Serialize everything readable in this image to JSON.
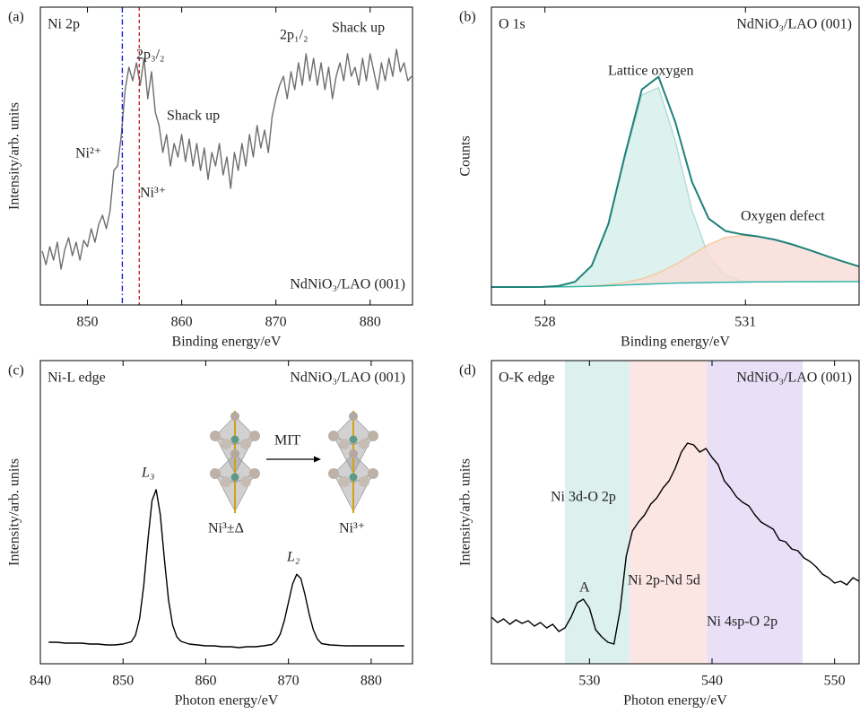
{
  "chart_data": [
    {
      "type": "line",
      "panel": "(a)",
      "label": "Ni 2p",
      "sample": "NdNiO₃/LAO (001)",
      "xlabel": "Binding energy/eV",
      "ylabel": "Intensity/arb. units",
      "xlim": [
        845,
        884.5
      ],
      "ylim": [
        0,
        332
      ],
      "xticks": [
        850,
        860,
        870,
        880
      ],
      "x": [
        845.2,
        845.6,
        846,
        846.4,
        846.8,
        847.2,
        847.6,
        848,
        848.4,
        848.8,
        849.2,
        849.6,
        850,
        850.4,
        850.8,
        851.2,
        851.6,
        852,
        852.4,
        852.8,
        853.2,
        853.6,
        854,
        854.4,
        854.8,
        855.2,
        855.6,
        856,
        856.4,
        856.8,
        857.2,
        857.6,
        858,
        858.4,
        858.8,
        859.2,
        859.6,
        860,
        860.4,
        860.8,
        861.2,
        861.6,
        862,
        862.4,
        862.8,
        863.2,
        863.6,
        864,
        864.4,
        864.8,
        865.2,
        865.6,
        866,
        866.4,
        866.8,
        867.2,
        867.6,
        868,
        868.4,
        868.8,
        869.2,
        869.6,
        870,
        870.4,
        870.8,
        871.2,
        871.6,
        872,
        872.4,
        872.8,
        873.2,
        873.6,
        874,
        874.4,
        874.8,
        875.2,
        875.6,
        876,
        876.4,
        876.8,
        877.2,
        877.6,
        878,
        878.4,
        878.8,
        879.2,
        879.6,
        880,
        880.4,
        880.8,
        881.2,
        881.6,
        882,
        882.4,
        882.8,
        883.2,
        883.6,
        884,
        884.4
      ],
      "series": [
        {
          "color": "#6e6e6e",
          "values": [
            60,
            45,
            65,
            50,
            70,
            40,
            62,
            75,
            55,
            70,
            50,
            72,
            65,
            85,
            70,
            90,
            100,
            85,
            105,
            150,
            155,
            190,
            240,
            265,
            250,
            270,
            245,
            275,
            230,
            260,
            215,
            200,
            170,
            190,
            155,
            180,
            165,
            190,
            160,
            185,
            155,
            180,
            150,
            175,
            140,
            170,
            155,
            180,
            145,
            165,
            130,
            170,
            150,
            180,
            155,
            190,
            165,
            200,
            175,
            195,
            170,
            210,
            230,
            245,
            255,
            230,
            260,
            240,
            270,
            245,
            280,
            250,
            275,
            245,
            270,
            240,
            265,
            230,
            255,
            270,
            250,
            280,
            255,
            265,
            245,
            275,
            250,
            280,
            260,
            240,
            270,
            250,
            275,
            255,
            285,
            260,
            270,
            250,
            255
          ]
        }
      ],
      "vlines": [
        {
          "value": 853.7,
          "color": "#1a1adb",
          "style": "dash-dot"
        },
        {
          "value": 855.5,
          "color": "#c0282d",
          "style": "dashed"
        }
      ],
      "annotations": [
        {
          "text": "2p₃/₂",
          "color": "#222222"
        },
        {
          "text": "Shack up",
          "color": "#222222"
        },
        {
          "text": "2p₁/₂",
          "color": "#222222"
        },
        {
          "text": "Shack up",
          "color": "#222222"
        },
        {
          "text": "Ni²⁺",
          "color": "#1a1adb"
        },
        {
          "text": "Ni³⁺",
          "color": "#c0282d"
        }
      ]
    },
    {
      "type": "line",
      "panel": "(b)",
      "label": "O 1s",
      "sample": "NdNiO₃/LAO (001)",
      "xlabel": "Binding energy/eV",
      "ylabel": "Counts",
      "xlim": [
        527.2,
        532.7
      ],
      "ylim": [
        0,
        332
      ],
      "xticks": [
        528,
        531
      ],
      "x": [
        527.2,
        527.45,
        527.7,
        527.95,
        528.2,
        528.45,
        528.7,
        528.95,
        529.2,
        529.45,
        529.7,
        529.95,
        530.2,
        530.45,
        530.7,
        530.95,
        531.2,
        531.45,
        531.7,
        531.95,
        532.2,
        532.45,
        532.7
      ],
      "series": [
        {
          "color": "#2bb5a8",
          "values": [
            20,
            20,
            20,
            20,
            20.2,
            20.4,
            20.8,
            21.5,
            22.3,
            23,
            23.7,
            24.3,
            24.7,
            25,
            25.3,
            25.5,
            25.7,
            25.8,
            25.9,
            26,
            26,
            26.1,
            26.1
          ]
        },
        {
          "color": "#a9dcd3",
          "fill": "#d4eeea",
          "values": [
            0,
            0,
            0,
            0.1,
            0.9,
            5.3,
            22.6,
            67.9,
            143,
            211.1,
            218.7,
            159,
            81.1,
            29,
            7.3,
            1.3,
            0.2,
            0,
            0,
            0,
            0,
            0,
            0
          ]
        },
        {
          "color": "#f1c79a",
          "fill": "#f9dcd6",
          "values": [
            0,
            0,
            0,
            0,
            0,
            0.1,
            0.4,
            1.1,
            2.7,
            6.1,
            12,
            20.7,
            31.5,
            42.3,
            49.9,
            51.9,
            50.3,
            46.8,
            41.6,
            35.4,
            28.9,
            22.6,
            16.9
          ]
        },
        {
          "color": "#1d8278",
          "values": [
            20,
            20,
            20,
            20.1,
            21.1,
            25.8,
            43.8,
            90.5,
            168,
            240.2,
            254.4,
            204,
            137.3,
            96.3,
            82.5,
            78.7,
            76.2,
            72.6,
            67.5,
            61.4,
            54.9,
            48.7,
            43
          ]
        }
      ],
      "annotations": [
        {
          "text": "Lattice oxygen",
          "color": "#222222"
        },
        {
          "text": "Oxygen defect",
          "color": "#222222"
        }
      ]
    },
    {
      "type": "line",
      "panel": "(c)",
      "label": "Ni-L edge",
      "sample": "NdNiO₃/LAO (001)",
      "xlabel": "Photon energy/eV",
      "ylabel": "Intensity/arb. units",
      "xlim": [
        840,
        885
      ],
      "ylim": [
        0,
        338
      ],
      "xticks": [
        840,
        850,
        860,
        870,
        880
      ],
      "x": [
        841,
        842,
        843,
        844,
        845,
        846,
        847,
        848,
        849,
        850,
        851,
        851.5,
        852,
        852.5,
        853,
        853.5,
        854,
        854.5,
        855,
        855.5,
        856,
        856.5,
        857,
        858,
        859,
        860,
        861,
        862,
        863,
        864,
        865,
        866,
        867,
        868,
        868.5,
        869,
        869.5,
        870,
        870.5,
        871,
        871.5,
        872,
        872.5,
        873,
        873.5,
        874,
        875,
        876,
        877,
        878,
        879,
        880,
        881,
        882,
        883,
        884
      ],
      "series": [
        {
          "color": "#000000",
          "values": [
            24,
            24,
            23,
            23,
            23,
            22,
            22,
            21,
            21,
            22,
            24.6,
            31.7,
            50.5,
            87,
            137.4,
            181.7,
            194.1,
            166.5,
            116.5,
            71,
            43,
            30,
            25,
            22,
            21,
            20,
            20,
            19,
            19,
            18,
            19,
            19,
            20,
            21.5,
            25,
            33,
            48,
            68.5,
            89,
            99.7,
            95,
            77,
            55.6,
            38,
            27.5,
            22.5,
            21,
            20.5,
            20,
            20,
            20,
            20,
            20,
            20,
            20,
            20
          ]
        }
      ],
      "annotations": [
        {
          "text": "L₃",
          "color": "#000000"
        },
        {
          "text": "L₂",
          "color": "#000000"
        },
        {
          "text": "MIT",
          "color": "#000000"
        },
        {
          "text": "Ni³±Δ",
          "color": "#222222"
        },
        {
          "text": "Ni³⁺",
          "color": "#222222"
        }
      ]
    },
    {
      "type": "line",
      "panel": "(d)",
      "label": "O-K edge",
      "sample": "NdNiO₃/LAO (001)",
      "xlabel": "Photon energy/eV",
      "ylabel": "Intensity/arb. units",
      "xlim": [
        522,
        552
      ],
      "ylim": [
        0,
        338
      ],
      "xticks": [
        530,
        540,
        550
      ],
      "x": [
        522,
        522.5,
        523,
        523.5,
        524,
        524.5,
        525,
        525.5,
        526,
        526.5,
        527,
        527.5,
        528,
        528.5,
        529,
        529.5,
        530,
        530.5,
        531,
        531.5,
        532,
        532.5,
        533,
        533.5,
        534,
        534.5,
        535,
        535.5,
        536,
        536.5,
        537,
        537.5,
        538,
        538.5,
        539,
        539.5,
        540,
        540.5,
        541,
        541.5,
        542,
        542.5,
        543,
        543.5,
        544,
        544.5,
        545,
        545.5,
        546,
        546.5,
        547,
        547.5,
        548,
        548.5,
        549,
        549.5,
        550,
        550.5,
        551,
        551.5,
        552
      ],
      "series": [
        {
          "color": "#000000",
          "values": [
            52,
            46,
            50,
            44,
            49,
            45,
            48,
            42,
            46,
            40,
            44,
            36,
            40,
            52,
            68,
            72,
            62,
            38,
            30,
            24,
            22,
            60,
            120,
            148,
            158,
            166,
            178,
            185,
            196,
            204,
            218,
            236,
            246,
            244,
            236,
            240,
            230,
            222,
            204,
            196,
            186,
            180,
            176,
            166,
            158,
            154,
            150,
            138,
            136,
            128,
            126,
            118,
            114,
            108,
            100,
            96,
            90,
            92,
            88,
            96,
            92
          ]
        }
      ],
      "bands": [
        {
          "start": 528,
          "end": 533.3,
          "color": "#dcf0ee",
          "label": "Ni 3d-O 2p",
          "label_color": "#3a9a98"
        },
        {
          "start": 533.3,
          "end": 539.6,
          "color": "#fce6e3",
          "label": "Ni 2p-Nd 5d",
          "label_color": "#e8883a"
        },
        {
          "start": 539.6,
          "end": 547.4,
          "color": "#e9e0f7",
          "label": "Ni 4sp-O 2p",
          "label_color": "#7b2b9b"
        }
      ],
      "annotations": [
        {
          "text": "A",
          "color": "#2f8d8a"
        }
      ]
    }
  ]
}
